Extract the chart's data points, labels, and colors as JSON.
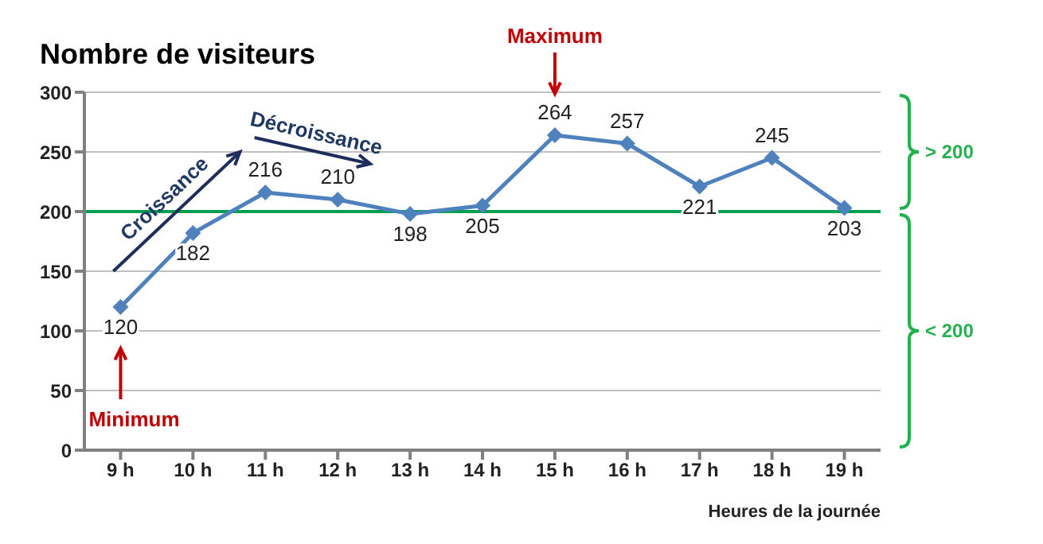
{
  "chart_data": {
    "type": "line",
    "title": "Nombre de visiteurs",
    "xlabel": "Heures de la journée",
    "categories": [
      "9 h",
      "10 h",
      "11 h",
      "12 h",
      "13 h",
      "14 h",
      "15 h",
      "16 h",
      "17 h",
      "18 h",
      "19 h"
    ],
    "series": [
      {
        "color": "#4f81bd",
        "values": [
          120,
          182,
          216,
          210,
          198,
          205,
          264,
          257,
          221,
          245,
          203
        ]
      }
    ],
    "ylim": [
      0,
      300
    ],
    "yticks": [
      0,
      50,
      100,
      150,
      200,
      250,
      300
    ],
    "grid": "y",
    "marker": "diamond",
    "line_style": "solid",
    "data_labels": true,
    "ref_lines": [
      {
        "axis": "y",
        "value": 200,
        "color": "#00a050"
      }
    ],
    "annotations": [
      "Croissance",
      "Décroissance",
      "Minimum",
      "Maximum",
      "> 200",
      "< 200"
    ]
  }
}
